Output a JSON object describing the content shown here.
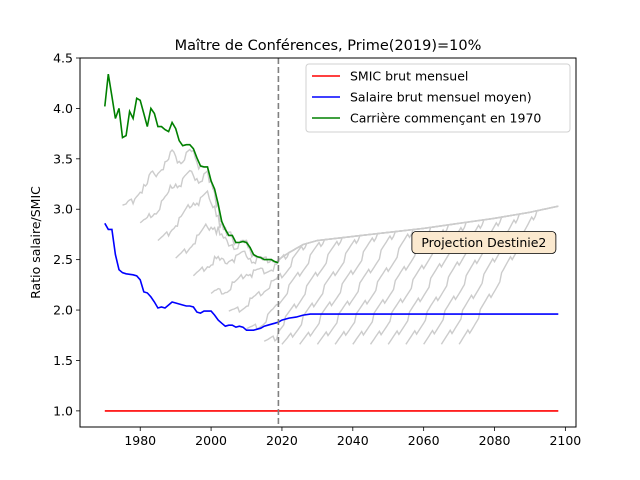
{
  "chart_data": {
    "type": "line",
    "title": "Maître de Conférences, Prime(2019)=10%",
    "xlabel": "",
    "ylabel": "Ratio salaire/SMIC",
    "xlim": [
      1963,
      2103
    ],
    "ylim": [
      0.84,
      4.5
    ],
    "xticks": [
      1980,
      2000,
      2020,
      2040,
      2060,
      2080,
      2100
    ],
    "yticks": [
      1.0,
      1.5,
      2.0,
      2.5,
      3.0,
      3.5,
      4.0,
      4.5
    ],
    "grid": false,
    "legend_position": "top-right",
    "vertical_line": {
      "x": 2019,
      "color": "#808080",
      "style": "dashed"
    },
    "annotation": {
      "text": "Projection Destinie2",
      "x": 2077,
      "y": 2.67
    },
    "series": [
      {
        "name": "SMIC brut mensuel",
        "color": "#ff0000",
        "x": [
          1970,
          2098
        ],
        "y": [
          1.0,
          1.0
        ]
      },
      {
        "name": "Salaire brut mensuel moyen)",
        "color": "#0000ff",
        "x": [
          1970,
          1971,
          1972,
          1973,
          1974,
          1975,
          1976,
          1977,
          1978,
          1979,
          1980,
          1981,
          1982,
          1983,
          1984,
          1985,
          1986,
          1987,
          1988,
          1989,
          1990,
          1991,
          1992,
          1993,
          1994,
          1995,
          1996,
          1997,
          1998,
          1999,
          2000,
          2001,
          2002,
          2003,
          2004,
          2005,
          2006,
          2007,
          2008,
          2009,
          2010,
          2011,
          2012,
          2013,
          2014,
          2015,
          2016,
          2017,
          2018,
          2019,
          2020,
          2022,
          2024,
          2026,
          2028,
          2030,
          2035,
          2040,
          2050,
          2060,
          2070,
          2080,
          2090,
          2098
        ],
        "y": [
          2.86,
          2.8,
          2.8,
          2.55,
          2.4,
          2.37,
          2.36,
          2.355,
          2.35,
          2.34,
          2.3,
          2.18,
          2.17,
          2.13,
          2.08,
          2.02,
          2.03,
          2.02,
          2.05,
          2.08,
          2.07,
          2.06,
          2.05,
          2.04,
          2.04,
          2.03,
          1.98,
          1.97,
          1.99,
          1.99,
          1.99,
          1.95,
          1.9,
          1.87,
          1.84,
          1.85,
          1.85,
          1.83,
          1.84,
          1.83,
          1.8,
          1.8,
          1.8,
          1.81,
          1.82,
          1.84,
          1.85,
          1.86,
          1.87,
          1.88,
          1.9,
          1.92,
          1.93,
          1.95,
          1.96,
          1.96,
          1.96,
          1.96,
          1.96,
          1.96,
          1.96,
          1.96,
          1.96,
          1.96
        ]
      },
      {
        "name": "Carrière commençant en 1970",
        "color": "#008000",
        "x": [
          1970,
          1971,
          1972,
          1973,
          1974,
          1975,
          1976,
          1977,
          1978,
          1979,
          1980,
          1981,
          1982,
          1983,
          1984,
          1985,
          1986,
          1987,
          1988,
          1989,
          1990,
          1991,
          1992,
          1993,
          1994,
          1995,
          1996,
          1997,
          1998,
          1999,
          2000,
          2001,
          2002,
          2003,
          2004,
          2005,
          2006,
          2007,
          2008,
          2009,
          2010,
          2011,
          2012,
          2013,
          2014,
          2015,
          2016,
          2017,
          2018,
          2019
        ],
        "y": [
          4.02,
          4.34,
          4.12,
          3.9,
          4.0,
          3.71,
          3.73,
          3.97,
          3.9,
          4.1,
          4.08,
          3.95,
          3.82,
          4.0,
          3.95,
          3.82,
          3.82,
          3.79,
          3.77,
          3.86,
          3.8,
          3.68,
          3.63,
          3.64,
          3.64,
          3.6,
          3.51,
          3.43,
          3.42,
          3.42,
          3.28,
          3.2,
          3.05,
          2.88,
          2.8,
          2.74,
          2.74,
          2.67,
          2.67,
          2.68,
          2.67,
          2.62,
          2.55,
          2.53,
          2.52,
          2.5,
          2.5,
          2.5,
          2.48,
          2.47
        ]
      }
    ],
    "background_cohorts": {
      "color": "#cccccc",
      "description_start_years": [
        1975,
        1980,
        1985,
        1990,
        1995,
        2000,
        2005,
        2010,
        2015,
        2020,
        2025,
        2030,
        2035,
        2040,
        2045,
        2050,
        2055,
        2060,
        2065,
        2070
      ],
      "shared_projection": {
        "x": [
          2019,
          2022,
          2026,
          2030,
          2040,
          2050,
          2060,
          2070,
          2080,
          2090,
          2098
        ],
        "y": [
          2.5,
          2.57,
          2.65,
          2.69,
          2.73,
          2.77,
          2.81,
          2.86,
          2.91,
          2.97,
          3.03
        ]
      }
    }
  }
}
